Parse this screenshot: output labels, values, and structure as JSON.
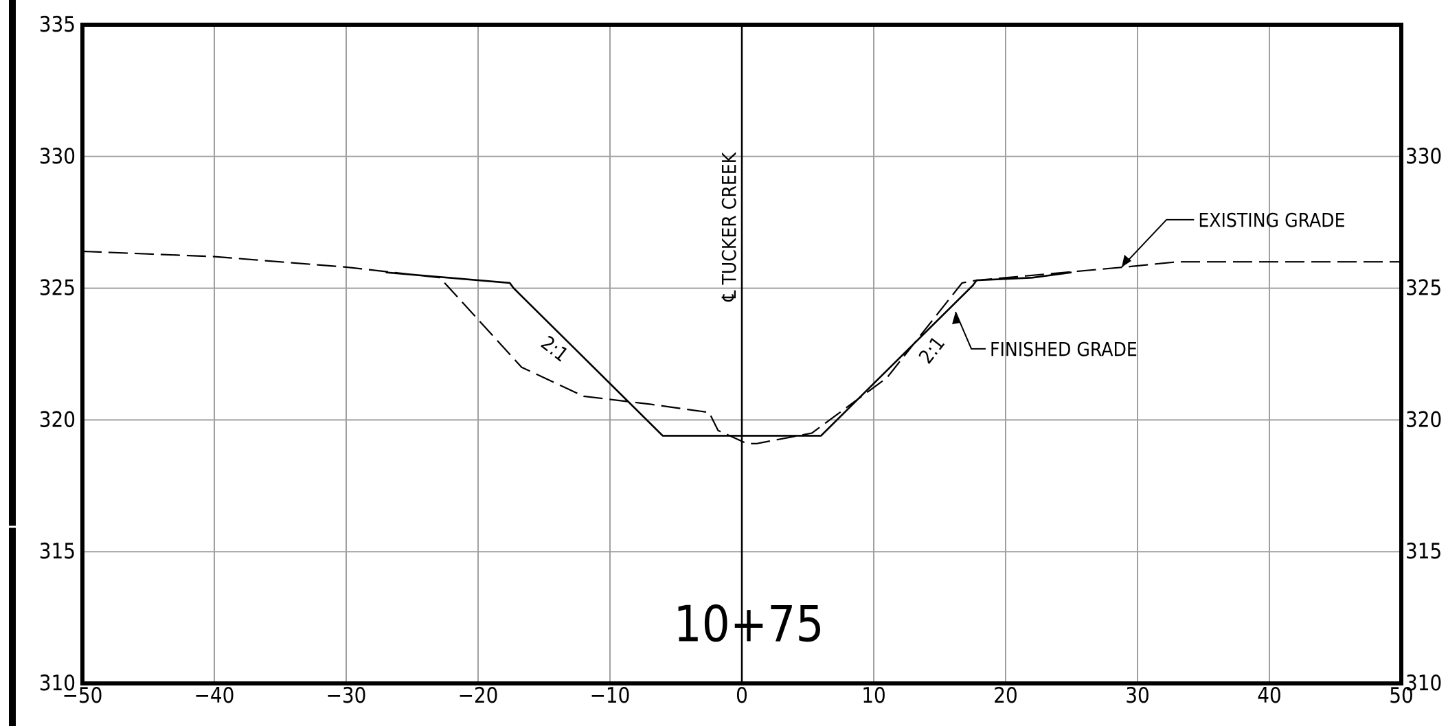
{
  "chart_data": {
    "type": "line",
    "station_label": "10+75",
    "xlim": [
      -50,
      50
    ],
    "ylim": [
      310,
      335
    ],
    "x_ticks": [
      -50,
      -40,
      -30,
      -20,
      -10,
      0,
      10,
      20,
      30,
      40,
      50
    ],
    "x_tick_labels": [
      "−50",
      "−40",
      "−30",
      "−20",
      "−10",
      "0",
      "10",
      "20",
      "30",
      "40",
      "50"
    ],
    "y_ticks_left": [
      310,
      315,
      320,
      325,
      330,
      335
    ],
    "y_tick_labels_left": [
      "310",
      "315",
      "320",
      "325",
      "330",
      "335"
    ],
    "y_ticks_right": [
      310,
      315,
      320,
      325,
      330
    ],
    "y_tick_labels_right": [
      "310",
      "315",
      "320",
      "325",
      "330"
    ],
    "grid": true,
    "centerline": {
      "x": 0,
      "label": "℄ TUCKER CREEK"
    },
    "series": [
      {
        "name": "EXISTING GRADE",
        "style": "dashed",
        "x": [
          -50,
          -40,
          -30,
          -22.9,
          -21.8,
          -16.7,
          -12,
          -7,
          -2.7,
          -2.5,
          -1.8,
          0.4,
          1.1,
          5.3,
          11,
          16.7,
          17.8,
          24.5,
          29,
          33,
          40,
          50
        ],
        "y": [
          326.4,
          326.2,
          325.8,
          325.4,
          324.8,
          322,
          320.9,
          320.6,
          320.3,
          320.3,
          319.6,
          319.1,
          319.1,
          319.5,
          321.6,
          325.2,
          325.3,
          325.6,
          325.8,
          326,
          326,
          326
        ]
      },
      {
        "name": "FINISHED GRADE",
        "style": "solid",
        "x": [
          -27,
          -17.6,
          -17.3,
          -6,
          6,
          17.5,
          17.8,
          22,
          25
        ],
        "y": [
          325.6,
          325.2,
          325,
          319.4,
          319.4,
          325.1,
          325.3,
          325.4,
          325.6
        ]
      }
    ],
    "annotations": [
      {
        "text": "EXISTING GRADE",
        "x": 34.6,
        "y": 327.6
      },
      {
        "text": "FINISHED GRADE",
        "x": 18.8,
        "y": 322.7
      },
      {
        "text": "2:1",
        "x": -14.5,
        "y": 322.5
      },
      {
        "text": "2:1",
        "x": 14.8,
        "y": 322.5
      }
    ],
    "colors": {
      "lines": "#000000",
      "grid": "#a0a0a0",
      "background": "#ffffff"
    }
  }
}
